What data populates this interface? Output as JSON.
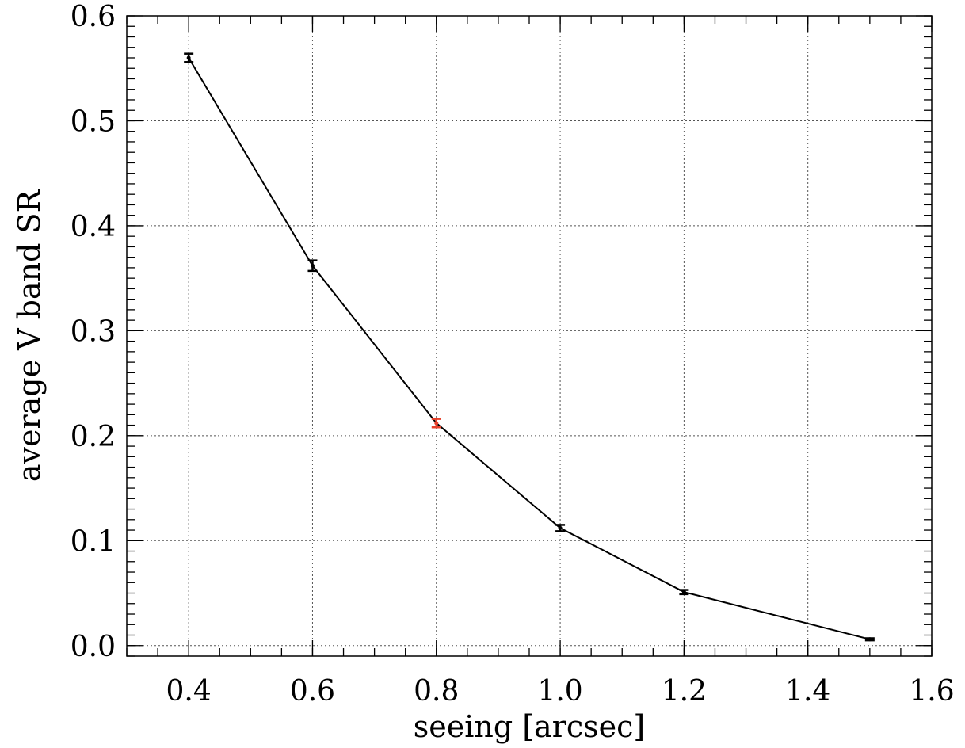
{
  "chart_data": {
    "type": "line",
    "xlabel": "seeing [arcsec]",
    "ylabel": "average V band SR",
    "xlim": [
      0.3,
      1.6
    ],
    "ylim": [
      -0.01,
      0.6
    ],
    "grid": true,
    "x_ticks": [
      0.4,
      0.6,
      0.8,
      1.0,
      1.2,
      1.4,
      1.6
    ],
    "x_tick_labels": [
      "0.4",
      "0.6",
      "0.8",
      "1.0",
      "1.2",
      "1.4",
      "1.6"
    ],
    "y_ticks": [
      0.0,
      0.1,
      0.2,
      0.3,
      0.4,
      0.5,
      0.6
    ],
    "y_tick_labels": [
      "0.0",
      "0.1",
      "0.2",
      "0.3",
      "0.4",
      "0.5",
      "0.6"
    ],
    "x_minor_step": 0.05,
    "y_minor_step": 0.01,
    "series": [
      {
        "x": [
          0.4,
          0.6,
          0.8,
          1.0,
          1.2,
          1.5
        ],
        "y": [
          0.56,
          0.362,
          0.212,
          0.112,
          0.051,
          0.006
        ],
        "yerr": [
          0.004,
          0.005,
          0.004,
          0.003,
          0.002,
          0.001
        ],
        "point_colors": [
          "#000000",
          "#000000",
          "#e8402a",
          "#000000",
          "#000000",
          "#000000"
        ]
      }
    ]
  }
}
